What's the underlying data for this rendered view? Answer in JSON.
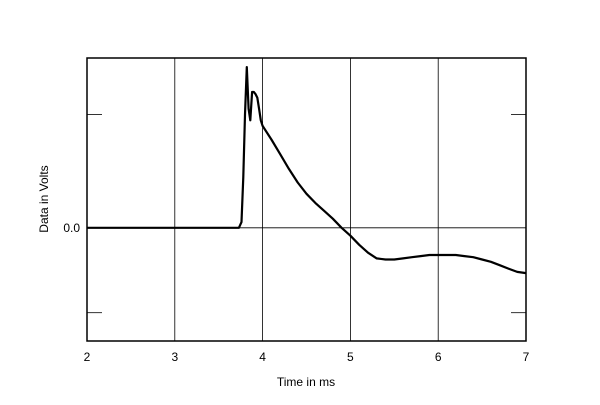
{
  "chart_data": {
    "type": "line",
    "title": "",
    "xlabel": "Time in ms",
    "ylabel": "Data in Volts",
    "xlim": [
      2,
      7
    ],
    "ylim": [
      -1.0,
      1.5
    ],
    "grid": true,
    "x_ticks": [
      {
        "value": 2,
        "label": "2"
      },
      {
        "value": 3,
        "label": "3"
      },
      {
        "value": 4,
        "label": "4"
      },
      {
        "value": 5,
        "label": "5"
      },
      {
        "value": 6,
        "label": "6"
      },
      {
        "value": 7,
        "label": "7"
      }
    ],
    "y_ticks": [
      {
        "value": 0.0,
        "label": "0.0"
      }
    ],
    "y_minor_ticks": [
      1.0,
      -0.75
    ],
    "series": [
      {
        "name": "",
        "color": "#000000",
        "x": [
          2.0,
          3.0,
          3.5,
          3.73,
          3.76,
          3.78,
          3.8,
          3.82,
          3.84,
          3.86,
          3.88,
          3.9,
          3.92,
          3.94,
          3.96,
          3.98,
          4.0,
          4.1,
          4.2,
          4.3,
          4.4,
          4.5,
          4.6,
          4.7,
          4.8,
          4.9,
          5.0,
          5.1,
          5.2,
          5.3,
          5.4,
          5.5,
          5.6,
          5.7,
          5.8,
          5.9,
          6.0,
          6.1,
          6.2,
          6.3,
          6.4,
          6.5,
          6.6,
          6.7,
          6.8,
          6.9,
          7.0
        ],
        "y": [
          0.0,
          0.0,
          0.0,
          0.0,
          0.05,
          0.45,
          1.0,
          1.42,
          1.05,
          0.95,
          1.2,
          1.2,
          1.18,
          1.15,
          1.05,
          0.95,
          0.9,
          0.78,
          0.65,
          0.52,
          0.4,
          0.3,
          0.22,
          0.15,
          0.08,
          0.0,
          -0.07,
          -0.15,
          -0.22,
          -0.27,
          -0.28,
          -0.28,
          -0.27,
          -0.26,
          -0.25,
          -0.24,
          -0.24,
          -0.24,
          -0.24,
          -0.25,
          -0.26,
          -0.28,
          -0.3,
          -0.33,
          -0.36,
          -0.39,
          -0.4
        ]
      }
    ]
  }
}
